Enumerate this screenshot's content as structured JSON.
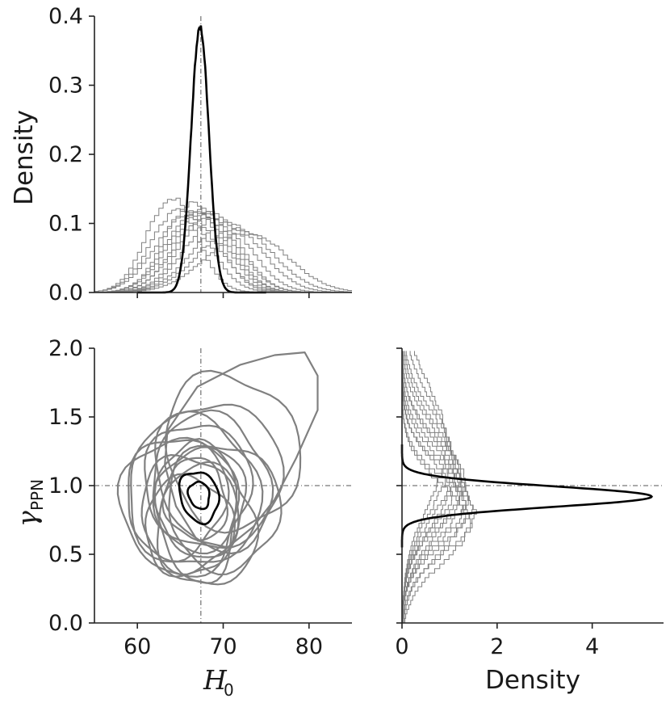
{
  "chart_data": [
    {
      "panel": "H0-marginal",
      "type": "line",
      "xlim": [
        55,
        85
      ],
      "ylim": [
        0,
        0.4
      ],
      "xticks": [
        60,
        70,
        80
      ],
      "yticks": [
        "0.0",
        "0.1",
        "0.2",
        "0.3",
        "0.4"
      ],
      "xlabel": "",
      "ylabel": "Density",
      "reference_line": {
        "x": 67.4
      },
      "combined": {
        "mean": 67.3,
        "sd": 1.03,
        "peak": 0.385,
        "color": "#000000"
      },
      "individual": {
        "color": "#808080",
        "style": "step",
        "series": [
          {
            "mean": 64.0,
            "sd": 2.9
          },
          {
            "mean": 65.0,
            "sd": 3.3
          },
          {
            "mean": 65.8,
            "sd": 3.6
          },
          {
            "mean": 66.3,
            "sd": 3.1
          },
          {
            "mean": 66.8,
            "sd": 3.4
          },
          {
            "mean": 67.2,
            "sd": 3.5
          },
          {
            "mean": 67.7,
            "sd": 3.3
          },
          {
            "mean": 68.1,
            "sd": 3.6
          },
          {
            "mean": 68.6,
            "sd": 3.4
          },
          {
            "mean": 69.4,
            "sd": 3.7
          },
          {
            "mean": 70.5,
            "sd": 4.0
          },
          {
            "mean": 71.5,
            "sd": 4.3
          },
          {
            "mean": 72.8,
            "sd": 4.6
          }
        ]
      }
    },
    {
      "panel": "joint",
      "type": "contour",
      "xlim": [
        55,
        85
      ],
      "ylim": [
        0,
        2
      ],
      "xticks": [
        60,
        70,
        80
      ],
      "yticks": [
        "0.0",
        "0.5",
        "1.0",
        "1.5",
        "2.0"
      ],
      "xlabel": "H",
      "xlabel_sub": "0",
      "ylabel": "γ",
      "ylabel_sub": "PPN",
      "reference_lines": {
        "x": 67.4,
        "y": 1.0
      },
      "combined": [
        {
          "cx": 67.2,
          "cy": 0.93,
          "rx": 1.2,
          "ry": 0.1,
          "rot": 0.35
        },
        {
          "cx": 67.2,
          "cy": 0.92,
          "rx": 2.2,
          "ry": 0.19,
          "rot": 0.35
        }
      ],
      "individual": [
        {
          "cx": 65.0,
          "cy": 0.85,
          "rx": 6.8,
          "ry": 0.5,
          "rot": 0.25
        },
        {
          "cx": 66.0,
          "cy": 0.8,
          "rx": 5.6,
          "ry": 0.42,
          "rot": 0.2
        },
        {
          "cx": 66.5,
          "cy": 0.95,
          "rx": 7.6,
          "ry": 0.55,
          "rot": 0.3
        },
        {
          "cx": 67.5,
          "cy": 0.88,
          "rx": 5.2,
          "ry": 0.4,
          "rot": -0.1
        },
        {
          "cx": 67.0,
          "cy": 1.0,
          "rx": 6.2,
          "ry": 0.46,
          "rot": 0.15
        },
        {
          "cx": 66.0,
          "cy": 0.7,
          "rx": 5.2,
          "ry": 0.36,
          "rot": 0.1
        },
        {
          "cx": 68.5,
          "cy": 1.02,
          "rx": 6.8,
          "ry": 0.5,
          "rot": 0.35
        },
        {
          "cx": 67.0,
          "cy": 0.82,
          "rx": 4.6,
          "ry": 0.52,
          "rot": 0.05
        },
        {
          "cx": 69.5,
          "cy": 1.08,
          "rx": 7.2,
          "ry": 0.54,
          "rot": 0.4
        },
        {
          "cx": 71.0,
          "cy": 1.25,
          "rx": 7.6,
          "ry": 0.58,
          "rot": 0.5
        },
        {
          "cx": 66.8,
          "cy": 0.9,
          "rx": 3.6,
          "ry": 0.3,
          "rot": 0.2
        },
        {
          "cx": 64.5,
          "cy": 0.92,
          "rx": 5.8,
          "ry": 0.44,
          "rot": -0.2
        },
        {
          "cx": 70.0,
          "cy": 0.85,
          "rx": 6.5,
          "ry": 0.46,
          "rot": 0.3
        },
        {
          "cx": 68.0,
          "cy": 0.7,
          "rx": 5.8,
          "ry": 0.44,
          "rot": 0.1
        }
      ],
      "outer_blob": [
        [
          63.5,
          1.4
        ],
        [
          67,
          1.72
        ],
        [
          72,
          1.88
        ],
        [
          76,
          1.95
        ],
        [
          79.5,
          1.97
        ],
        [
          81,
          1.8
        ],
        [
          81,
          1.55
        ],
        [
          78.5,
          1.2
        ],
        [
          76,
          0.9
        ],
        [
          73.5,
          0.7
        ],
        [
          70.5,
          0.55
        ],
        [
          67,
          0.6
        ],
        [
          64.5,
          0.85
        ],
        [
          63.2,
          1.15
        ]
      ]
    },
    {
      "panel": "gamma-marginal",
      "type": "line",
      "orientation": "horizontal",
      "xlim": [
        0,
        5.5
      ],
      "ylim": [
        0,
        2
      ],
      "xticks": [
        0,
        2,
        4
      ],
      "xlabel": "Density",
      "ylabel": "",
      "reference_line": {
        "y": 1.0
      },
      "combined": {
        "mean": 0.92,
        "sd": 0.075,
        "peak": 5.25,
        "color": "#000000"
      },
      "individual": {
        "color": "#808080",
        "style": "step",
        "series": [
          {
            "mean": 0.72,
            "sd": 0.28
          },
          {
            "mean": 0.78,
            "sd": 0.26
          },
          {
            "mean": 0.82,
            "sd": 0.3
          },
          {
            "mean": 0.86,
            "sd": 0.27
          },
          {
            "mean": 0.9,
            "sd": 0.29
          },
          {
            "mean": 0.94,
            "sd": 0.3
          },
          {
            "mean": 0.98,
            "sd": 0.32
          },
          {
            "mean": 1.02,
            "sd": 0.3
          },
          {
            "mean": 1.06,
            "sd": 0.33
          },
          {
            "mean": 1.1,
            "sd": 0.35
          },
          {
            "mean": 1.15,
            "sd": 0.36
          },
          {
            "mean": 1.22,
            "sd": 0.39
          },
          {
            "mean": 1.3,
            "sd": 0.42
          }
        ]
      }
    }
  ]
}
